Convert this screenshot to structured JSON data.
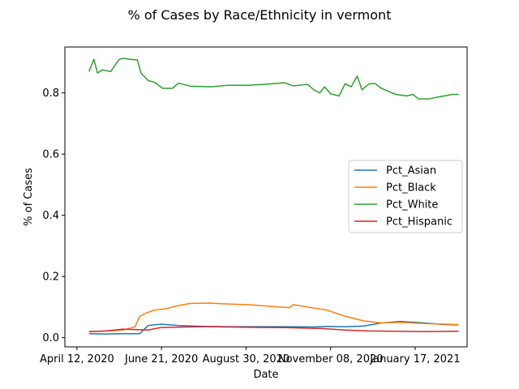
{
  "chart_data": {
    "type": "line",
    "title": "% of Cases by Race/Ethnicity in vermont",
    "xlabel": "Date",
    "ylabel": "% of Cases",
    "xlim": [
      "2020-04-02",
      "2021-03-01"
    ],
    "ylim": [
      -0.03,
      0.95
    ],
    "x_ticks": [
      {
        "date": "2020-04-12",
        "label": "April 12, 2020"
      },
      {
        "date": "2020-06-21",
        "label": "June 21, 2020"
      },
      {
        "date": "2020-08-30",
        "label": "August 30, 2020"
      },
      {
        "date": "2020-11-08",
        "label": "November 08, 2020"
      },
      {
        "date": "2021-01-17",
        "label": "January 17, 2021"
      }
    ],
    "y_ticks": [
      0.0,
      0.2,
      0.4,
      0.6,
      0.8
    ],
    "y_tick_labels": [
      "0.0",
      "0.2",
      "0.4",
      "0.6",
      "0.8"
    ],
    "legend_position": "center-right",
    "grid": false,
    "series": [
      {
        "name": "Pct_Asian",
        "color": "#1f77b4",
        "points": [
          [
            "2020-04-22",
            0.013
          ],
          [
            "2020-05-06",
            0.012
          ],
          [
            "2020-05-20",
            0.013
          ],
          [
            "2020-06-03",
            0.013
          ],
          [
            "2020-06-10",
            0.04
          ],
          [
            "2020-06-20",
            0.044
          ],
          [
            "2020-07-05",
            0.04
          ],
          [
            "2020-07-25",
            0.037
          ],
          [
            "2020-08-15",
            0.036
          ],
          [
            "2020-09-05",
            0.036
          ],
          [
            "2020-09-30",
            0.036
          ],
          [
            "2020-10-25",
            0.035
          ],
          [
            "2020-11-05",
            0.037
          ],
          [
            "2020-11-20",
            0.036
          ],
          [
            "2020-12-05",
            0.038
          ],
          [
            "2020-12-20",
            0.048
          ],
          [
            "2021-01-05",
            0.053
          ],
          [
            "2021-01-25",
            0.048
          ],
          [
            "2021-02-10",
            0.043
          ],
          [
            "2021-02-22",
            0.042
          ]
        ]
      },
      {
        "name": "Pct_Black",
        "color": "#ff7f0e",
        "points": [
          [
            "2020-04-22",
            0.02
          ],
          [
            "2020-05-06",
            0.022
          ],
          [
            "2020-05-20",
            0.025
          ],
          [
            "2020-05-30",
            0.035
          ],
          [
            "2020-06-03",
            0.07
          ],
          [
            "2020-06-08",
            0.08
          ],
          [
            "2020-06-15",
            0.09
          ],
          [
            "2020-06-25",
            0.095
          ],
          [
            "2020-07-05",
            0.105
          ],
          [
            "2020-07-15",
            0.112
          ],
          [
            "2020-07-30",
            0.113
          ],
          [
            "2020-08-15",
            0.11
          ],
          [
            "2020-09-01",
            0.108
          ],
          [
            "2020-09-20",
            0.102
          ],
          [
            "2020-10-05",
            0.098
          ],
          [
            "2020-10-08",
            0.108
          ],
          [
            "2020-10-20",
            0.1
          ],
          [
            "2020-11-05",
            0.09
          ],
          [
            "2020-11-20",
            0.07
          ],
          [
            "2020-12-05",
            0.055
          ],
          [
            "2020-12-20",
            0.048
          ],
          [
            "2021-01-05",
            0.05
          ],
          [
            "2021-01-25",
            0.046
          ],
          [
            "2021-02-10",
            0.044
          ],
          [
            "2021-02-22",
            0.043
          ]
        ]
      },
      {
        "name": "Pct_White",
        "color": "#2ca02c",
        "points": [
          [
            "2020-04-22",
            0.87
          ],
          [
            "2020-04-26",
            0.91
          ],
          [
            "2020-04-29",
            0.865
          ],
          [
            "2020-05-03",
            0.875
          ],
          [
            "2020-05-10",
            0.87
          ],
          [
            "2020-05-17",
            0.91
          ],
          [
            "2020-05-21",
            0.913
          ],
          [
            "2020-05-25",
            0.91
          ],
          [
            "2020-06-01",
            0.908
          ],
          [
            "2020-06-04",
            0.865
          ],
          [
            "2020-06-10",
            0.84
          ],
          [
            "2020-06-15",
            0.835
          ],
          [
            "2020-06-22",
            0.815
          ],
          [
            "2020-06-30",
            0.815
          ],
          [
            "2020-07-05",
            0.832
          ],
          [
            "2020-07-15",
            0.822
          ],
          [
            "2020-08-01",
            0.82
          ],
          [
            "2020-08-15",
            0.825
          ],
          [
            "2020-09-01",
            0.825
          ],
          [
            "2020-09-15",
            0.828
          ],
          [
            "2020-10-01",
            0.833
          ],
          [
            "2020-10-08",
            0.823
          ],
          [
            "2020-10-20",
            0.828
          ],
          [
            "2020-10-25",
            0.81
          ],
          [
            "2020-10-30",
            0.8
          ],
          [
            "2020-11-03",
            0.82
          ],
          [
            "2020-11-08",
            0.797
          ],
          [
            "2020-11-15",
            0.79
          ],
          [
            "2020-11-20",
            0.83
          ],
          [
            "2020-11-25",
            0.82
          ],
          [
            "2020-11-30",
            0.855
          ],
          [
            "2020-12-04",
            0.81
          ],
          [
            "2020-12-10",
            0.83
          ],
          [
            "2020-12-15",
            0.83
          ],
          [
            "2020-12-20",
            0.815
          ],
          [
            "2021-01-01",
            0.795
          ],
          [
            "2021-01-10",
            0.79
          ],
          [
            "2021-01-15",
            0.795
          ],
          [
            "2021-01-20",
            0.78
          ],
          [
            "2021-01-28",
            0.78
          ],
          [
            "2021-02-03",
            0.785
          ],
          [
            "2021-02-10",
            0.79
          ],
          [
            "2021-02-17",
            0.795
          ],
          [
            "2021-02-22",
            0.795
          ]
        ]
      },
      {
        "name": "Pct_Hispanic",
        "color": "#d62728",
        "points": [
          [
            "2020-04-22",
            0.02
          ],
          [
            "2020-05-06",
            0.022
          ],
          [
            "2020-05-20",
            0.028
          ],
          [
            "2020-06-10",
            0.025
          ],
          [
            "2020-06-20",
            0.033
          ],
          [
            "2020-07-10",
            0.035
          ],
          [
            "2020-08-01",
            0.036
          ],
          [
            "2020-09-01",
            0.034
          ],
          [
            "2020-10-01",
            0.033
          ],
          [
            "2020-11-01",
            0.03
          ],
          [
            "2020-11-20",
            0.025
          ],
          [
            "2020-12-10",
            0.022
          ],
          [
            "2021-01-01",
            0.021
          ],
          [
            "2021-01-25",
            0.02
          ],
          [
            "2021-02-22",
            0.021
          ]
        ]
      }
    ]
  }
}
